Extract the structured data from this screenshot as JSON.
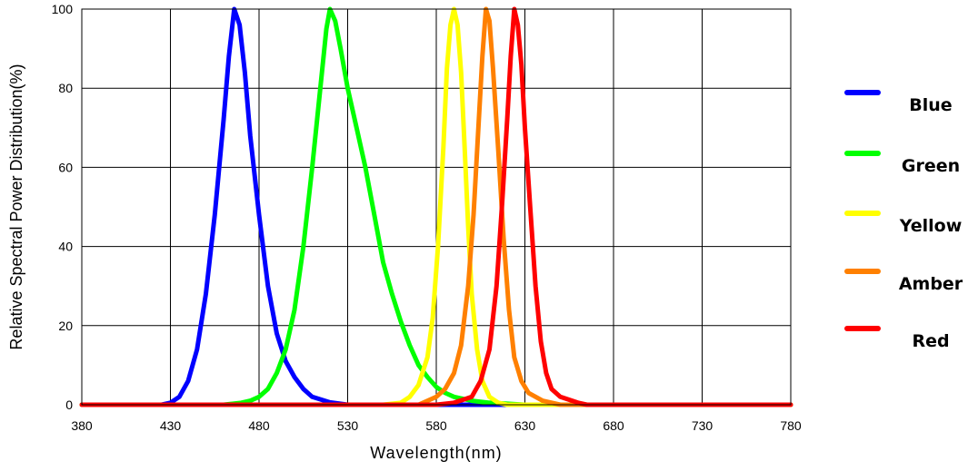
{
  "chart_data": {
    "type": "line",
    "title": "",
    "xlabel": "Wavelength(nm)",
    "ylabel": "Relative Spectral Power Distribution(%)",
    "xlim": [
      380,
      780
    ],
    "ylim": [
      0,
      100
    ],
    "xticks": [
      380,
      430,
      480,
      530,
      580,
      630,
      680,
      730,
      780
    ],
    "yticks": [
      0,
      20,
      40,
      60,
      80,
      100
    ],
    "grid": true,
    "legend_position": "right",
    "series": [
      {
        "name": "Blue",
        "color": "#0000ff",
        "points": [
          [
            380,
            0
          ],
          [
            425,
            0
          ],
          [
            430,
            0.5
          ],
          [
            435,
            2
          ],
          [
            440,
            6
          ],
          [
            445,
            14
          ],
          [
            450,
            28
          ],
          [
            455,
            48
          ],
          [
            460,
            72
          ],
          [
            463,
            88
          ],
          [
            466,
            100
          ],
          [
            469,
            96
          ],
          [
            472,
            84
          ],
          [
            475,
            68
          ],
          [
            480,
            48
          ],
          [
            485,
            30
          ],
          [
            490,
            18
          ],
          [
            495,
            11
          ],
          [
            500,
            7
          ],
          [
            505,
            4
          ],
          [
            510,
            2
          ],
          [
            520,
            0.6
          ],
          [
            530,
            0
          ],
          [
            780,
            0
          ]
        ]
      },
      {
        "name": "Green",
        "color": "#00ff00",
        "points": [
          [
            380,
            0
          ],
          [
            460,
            0
          ],
          [
            470,
            0.5
          ],
          [
            475,
            1
          ],
          [
            480,
            2
          ],
          [
            485,
            4
          ],
          [
            490,
            8
          ],
          [
            495,
            14
          ],
          [
            500,
            24
          ],
          [
            505,
            40
          ],
          [
            510,
            60
          ],
          [
            515,
            82
          ],
          [
            518,
            95
          ],
          [
            520,
            100
          ],
          [
            523,
            97
          ],
          [
            526,
            90
          ],
          [
            530,
            80
          ],
          [
            535,
            70
          ],
          [
            540,
            60
          ],
          [
            545,
            48
          ],
          [
            550,
            36
          ],
          [
            555,
            28
          ],
          [
            560,
            21
          ],
          [
            565,
            15
          ],
          [
            570,
            10
          ],
          [
            575,
            7
          ],
          [
            580,
            4.5
          ],
          [
            585,
            3
          ],
          [
            590,
            2
          ],
          [
            600,
            1
          ],
          [
            610,
            0.5
          ],
          [
            630,
            0
          ],
          [
            780,
            0
          ]
        ]
      },
      {
        "name": "Yellow",
        "color": "#ffff00",
        "points": [
          [
            380,
            0
          ],
          [
            550,
            0
          ],
          [
            560,
            0.5
          ],
          [
            565,
            2
          ],
          [
            570,
            5
          ],
          [
            575,
            12
          ],
          [
            578,
            22
          ],
          [
            581,
            40
          ],
          [
            584,
            65
          ],
          [
            586,
            85
          ],
          [
            588,
            96
          ],
          [
            590,
            100
          ],
          [
            592,
            96
          ],
          [
            594,
            84
          ],
          [
            596,
            65
          ],
          [
            598,
            45
          ],
          [
            600,
            28
          ],
          [
            603,
            14
          ],
          [
            606,
            6
          ],
          [
            610,
            2
          ],
          [
            615,
            0.5
          ],
          [
            620,
            0
          ],
          [
            780,
            0
          ]
        ]
      },
      {
        "name": "Amber",
        "color": "#ff8000",
        "points": [
          [
            380,
            0
          ],
          [
            570,
            0
          ],
          [
            575,
            1
          ],
          [
            580,
            2
          ],
          [
            585,
            4
          ],
          [
            590,
            8
          ],
          [
            594,
            15
          ],
          [
            598,
            30
          ],
          [
            601,
            48
          ],
          [
            604,
            72
          ],
          [
            606,
            88
          ],
          [
            608,
            100
          ],
          [
            610,
            97
          ],
          [
            612,
            85
          ],
          [
            615,
            64
          ],
          [
            618,
            42
          ],
          [
            621,
            24
          ],
          [
            624,
            12
          ],
          [
            628,
            6
          ],
          [
            632,
            3
          ],
          [
            640,
            1
          ],
          [
            650,
            0
          ],
          [
            780,
            0
          ]
        ]
      },
      {
        "name": "Red",
        "color": "#ff0000",
        "points": [
          [
            380,
            0
          ],
          [
            580,
            0
          ],
          [
            590,
            0.5
          ],
          [
            600,
            2
          ],
          [
            605,
            6
          ],
          [
            610,
            14
          ],
          [
            614,
            30
          ],
          [
            617,
            50
          ],
          [
            620,
            72
          ],
          [
            622,
            88
          ],
          [
            624,
            100
          ],
          [
            626,
            96
          ],
          [
            628,
            86
          ],
          [
            630,
            70
          ],
          [
            633,
            50
          ],
          [
            636,
            30
          ],
          [
            639,
            16
          ],
          [
            642,
            8
          ],
          [
            645,
            4
          ],
          [
            650,
            2
          ],
          [
            660,
            0.5
          ],
          [
            665,
            0
          ],
          [
            780,
            0
          ]
        ]
      }
    ]
  }
}
